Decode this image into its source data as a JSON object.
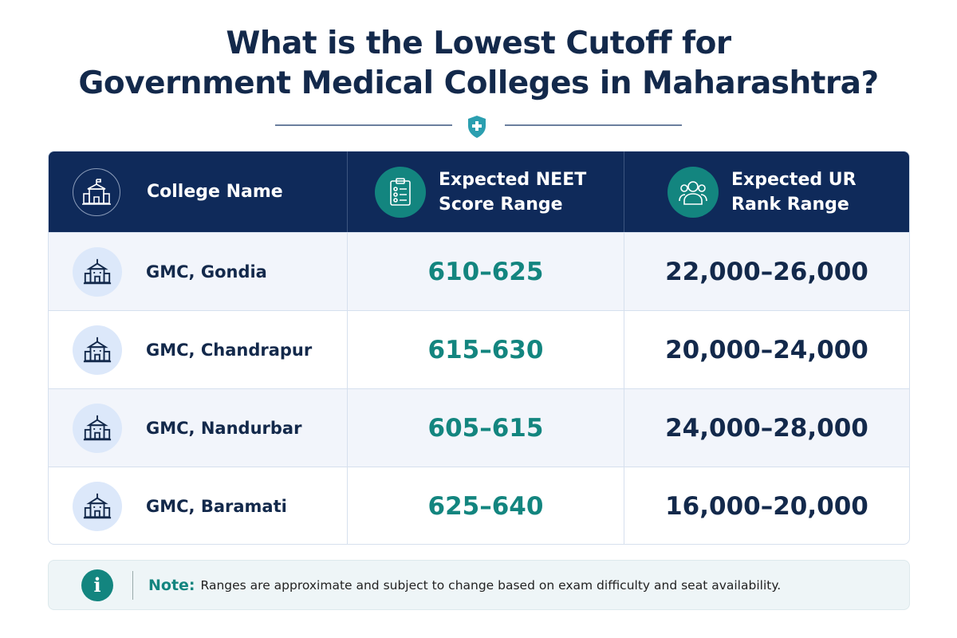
{
  "title_line1": "What is the Lowest Cutoff for",
  "title_line2": "Government Medical Colleges in Maharashtra?",
  "colors": {
    "navy": "#0f2a5a",
    "teal": "#13857f",
    "row_alt": "#f2f5fb"
  },
  "table": {
    "headers": [
      {
        "line1": "College Name",
        "line2": "",
        "icon": "college-building-icon"
      },
      {
        "line1": "Expected NEET",
        "line2": "Score Range",
        "icon": "clipboard-icon"
      },
      {
        "line1": "Expected UR",
        "line2": "Rank Range",
        "icon": "group-users-icon"
      }
    ],
    "rows": [
      {
        "college": "GMC, Gondia",
        "score": "610–625",
        "rank": "22,000–26,000"
      },
      {
        "college": "GMC, Chandrapur",
        "score": "615–630",
        "rank": "20,000–24,000"
      },
      {
        "college": "GMC, Nandurbar",
        "score": "605–615",
        "rank": "24,000–28,000"
      },
      {
        "college": "GMC, Baramati",
        "score": "625–640",
        "rank": "16,000–20,000"
      }
    ]
  },
  "note": {
    "label": "Note:",
    "text": "Ranges are approximate and subject to change based on exam difficulty and seat availability.",
    "icon": "info-icon"
  }
}
